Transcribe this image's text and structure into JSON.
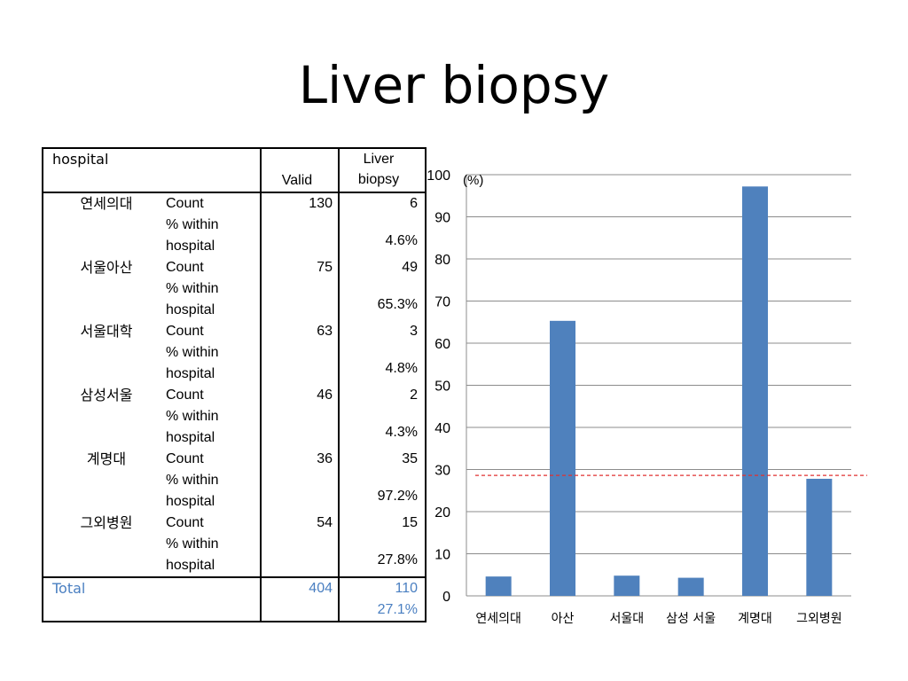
{
  "title": "Liver biopsy",
  "table": {
    "header": {
      "col1": "hospital",
      "col3": "Valid",
      "col4_line1": "Liver",
      "col4_line2": "biopsy"
    },
    "count_label": "Count",
    "pct_label_line1": "% within",
    "pct_label_line2": "hospital",
    "rows": [
      {
        "hospital": "연세의대",
        "valid": "130",
        "count": "6",
        "pct": "4.6%"
      },
      {
        "hospital": "서울아산",
        "valid": "75",
        "count": "49",
        "pct": "65.3%"
      },
      {
        "hospital": "서울대학",
        "valid": "63",
        "count": "3",
        "pct": "4.8%"
      },
      {
        "hospital": "삼성서울",
        "valid": "46",
        "count": "2",
        "pct": "4.3%"
      },
      {
        "hospital": "계명대",
        "valid": "36",
        "count": "35",
        "pct": "97.2%"
      },
      {
        "hospital": "그외병원",
        "valid": "54",
        "count": "15",
        "pct": "27.8%"
      }
    ],
    "total": {
      "label": "Total",
      "valid": "404",
      "count": "110",
      "pct": "27.1%"
    }
  },
  "chart_data": {
    "type": "bar",
    "categories": [
      "연세의대",
      "아산",
      "서울대",
      "삼성 서울",
      "계명대",
      "그외병원"
    ],
    "values": [
      4.6,
      65.3,
      4.8,
      4.3,
      97.2,
      27.8
    ],
    "unit_label": "(%)",
    "ylim": [
      0,
      100
    ],
    "yticks": [
      0,
      10,
      20,
      30,
      40,
      50,
      60,
      70,
      80,
      90,
      100
    ],
    "grid": true,
    "reference_line": 28.6,
    "bar_color": "#4f81bd",
    "reference_color": "#e03030"
  }
}
